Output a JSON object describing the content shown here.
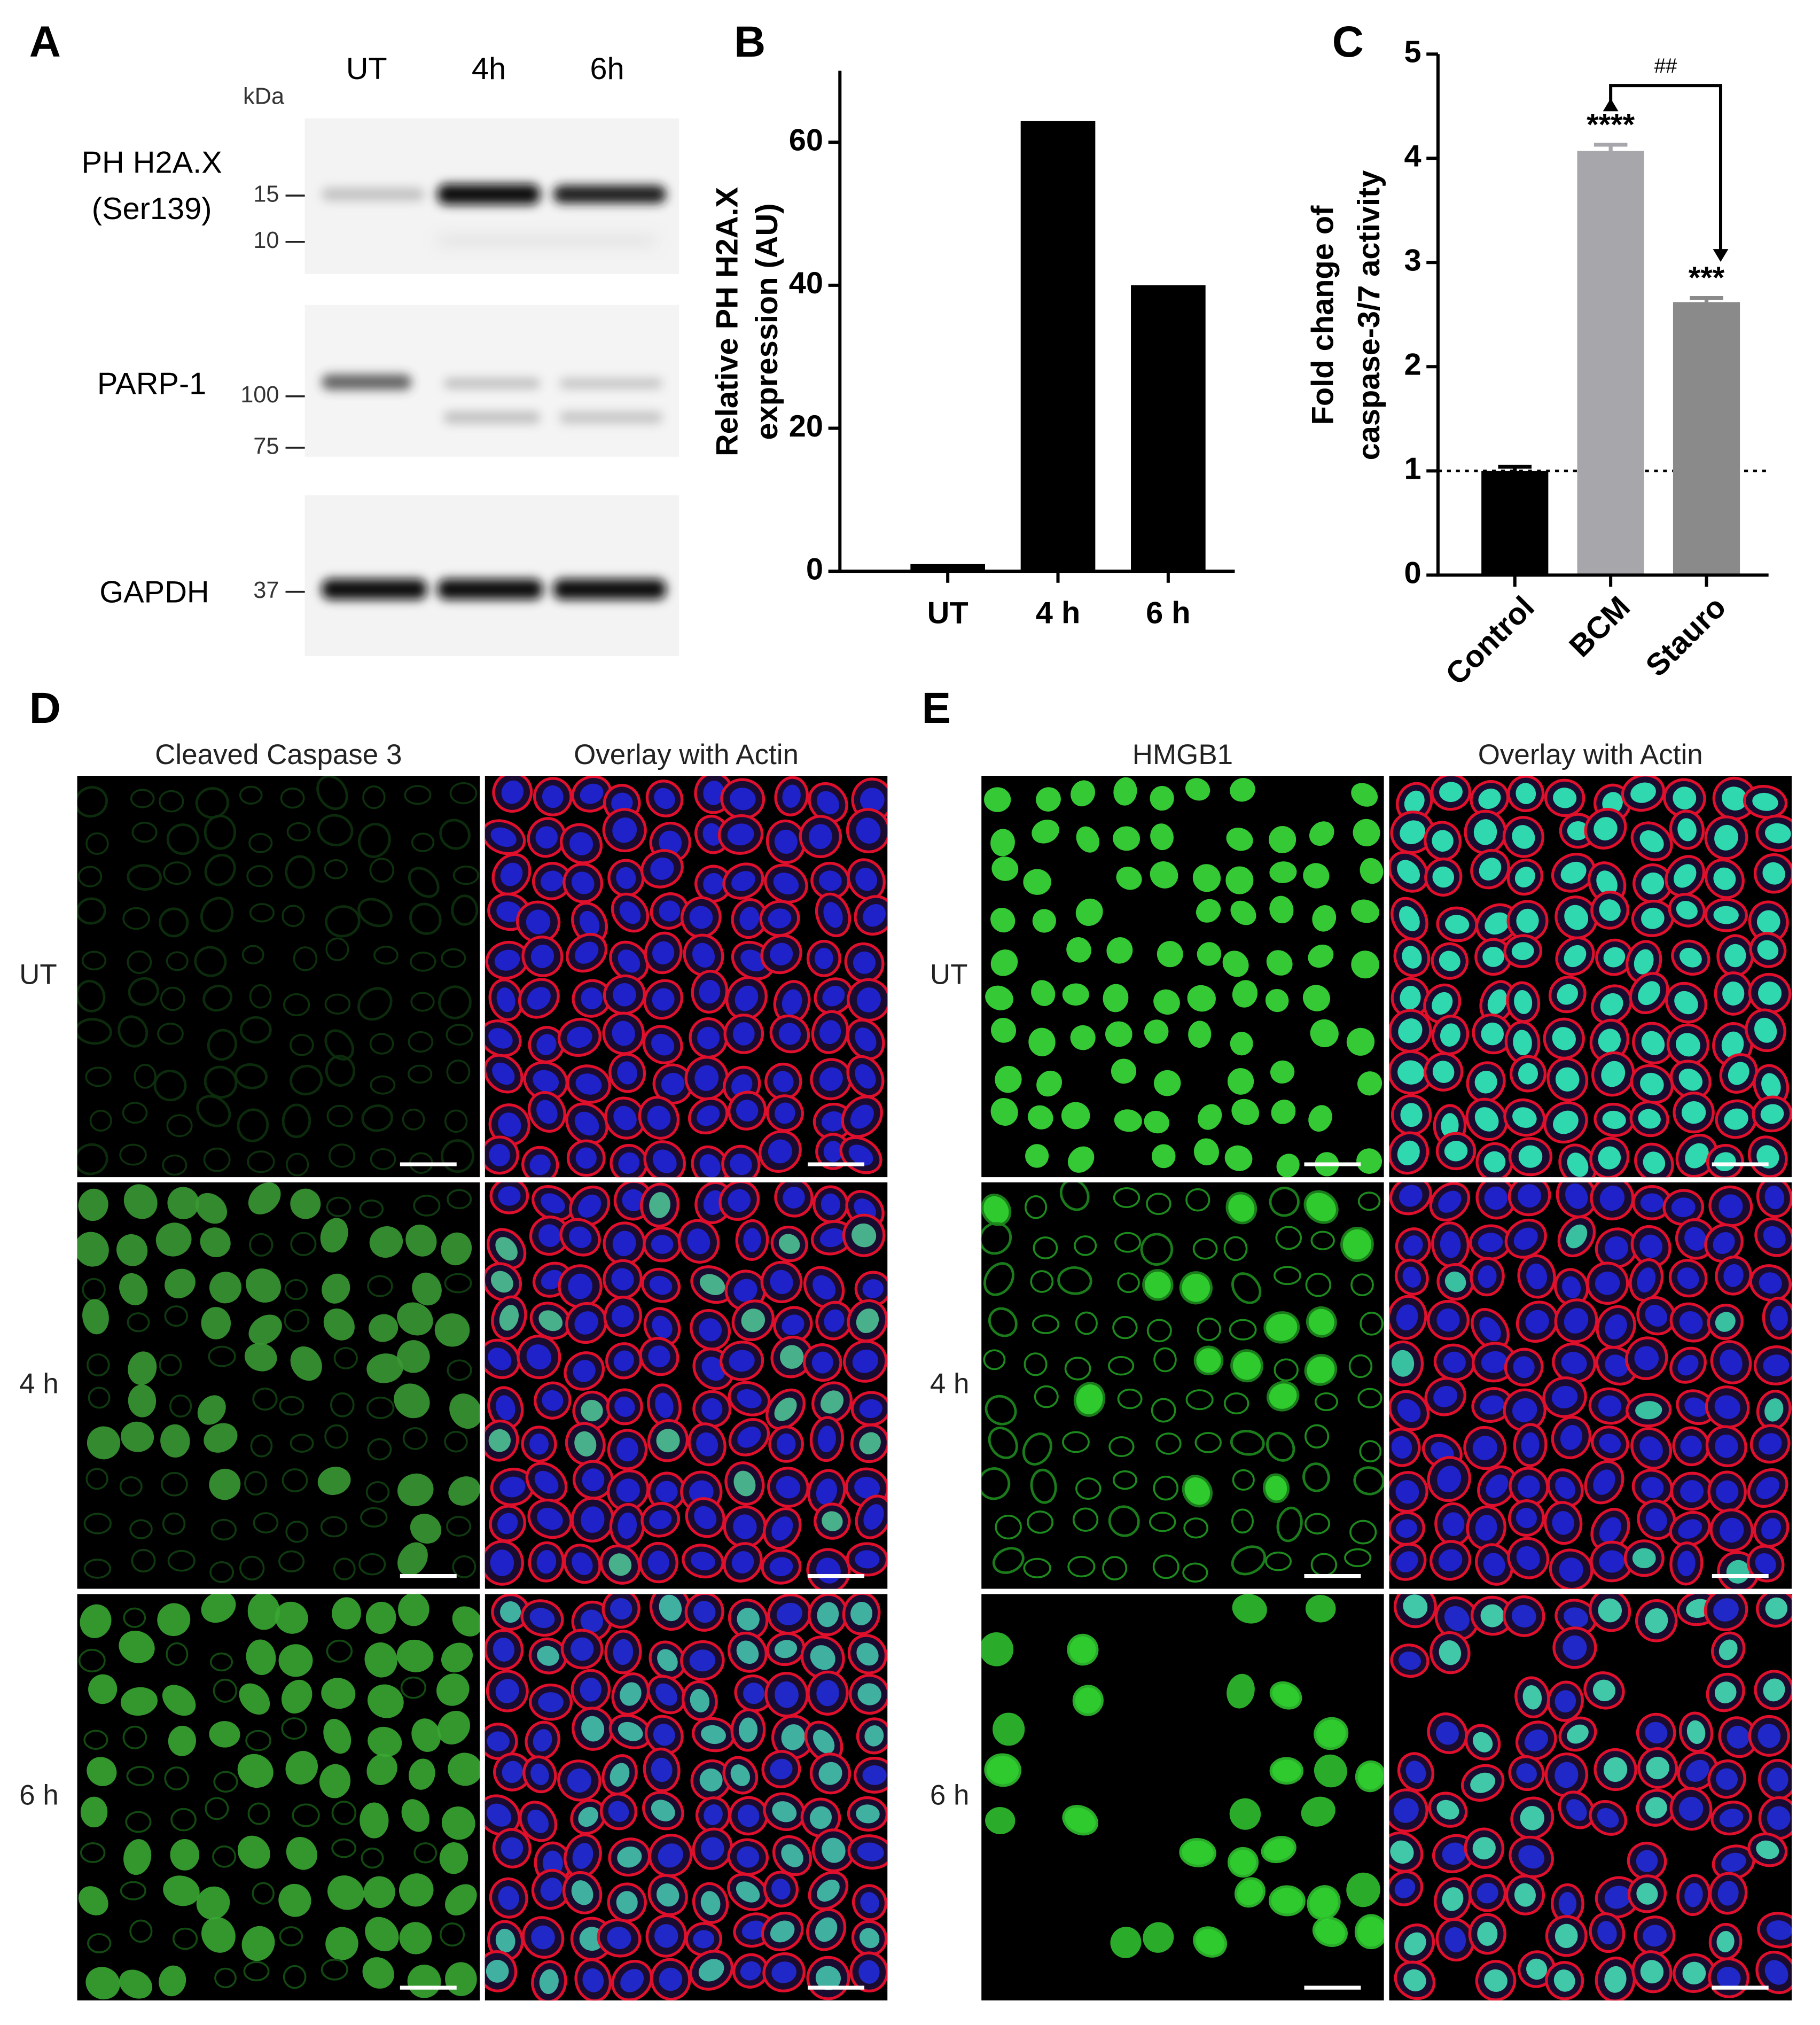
{
  "blot": {
    "panel": "A",
    "lanes": [
      "UT",
      "4h",
      "6h"
    ],
    "unit": "kDa",
    "rows": [
      {
        "label": [
          "PH H2A.X",
          "(Ser139)"
        ],
        "markers": [
          15,
          10
        ]
      },
      {
        "label": [
          "PARP-1"
        ],
        "markers": [
          100,
          75
        ]
      },
      {
        "label": [
          "GAPDH"
        ],
        "markers": [
          37
        ]
      }
    ]
  },
  "chart_data": [
    {
      "type": "bar",
      "panel": "B",
      "y_label": [
        "Relative PH H2A.X",
        "expression  (AU)"
      ],
      "categories": [
        "UT",
        "4 h",
        "6 h"
      ],
      "values": [
        1,
        63,
        40
      ],
      "color": "#000000",
      "ylim": [
        0,
        70
      ],
      "yticks": [
        0,
        20,
        40,
        60
      ]
    },
    {
      "type": "bar",
      "panel": "C",
      "y_label": [
        "Fold change of",
        "caspase-3/7 activity"
      ],
      "categories": [
        "Control",
        "BCM",
        "Stauro"
      ],
      "values": [
        1.0,
        4.07,
        2.62
      ],
      "errors": [
        0.04,
        0.06,
        0.04
      ],
      "colors": [
        "#000000",
        "#a6a6ab",
        "#8a8a8a"
      ],
      "ylim": [
        0,
        5
      ],
      "yticks": [
        0,
        1,
        2,
        3,
        4,
        5
      ],
      "reference_line": 1,
      "annotations": [
        {
          "text": "****",
          "category": "BCM"
        },
        {
          "text": "***",
          "category": "Stauro"
        },
        {
          "text": "##",
          "between": [
            "BCM",
            "Stauro"
          ]
        }
      ]
    }
  ],
  "microscopy": [
    {
      "panel": "D",
      "columns": [
        "Cleaved Caspase 3",
        "Overlay with Actin"
      ],
      "rows": [
        "UT",
        "4 h",
        "6 h"
      ]
    },
    {
      "panel": "E",
      "columns": [
        "HMGB1",
        "Overlay with Actin"
      ],
      "rows": [
        "UT",
        "4 h",
        "6 h"
      ]
    }
  ]
}
